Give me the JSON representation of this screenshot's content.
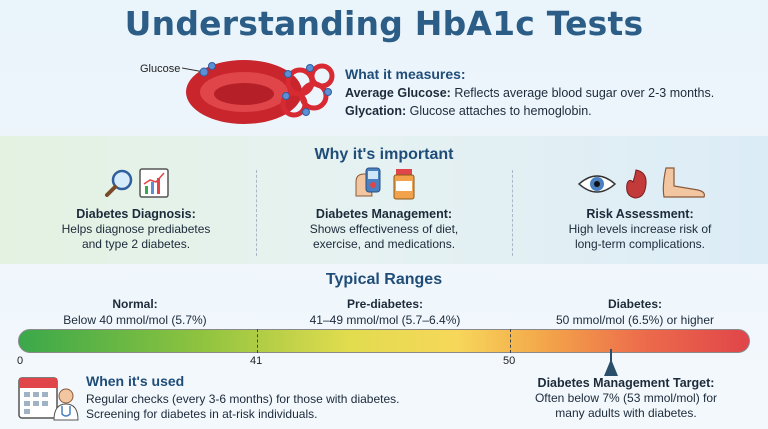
{
  "title": "Understanding HbA1c Tests",
  "measures": {
    "glucose_label": "Glucose",
    "heading": "What it measures:",
    "line1_bold": "Average Glucose:",
    "line1_text": " Reflects average blood sugar over 2-3 months.",
    "line2_bold": "Glycation:",
    "line2_text": " Glucose attaches to hemoglobin."
  },
  "important": {
    "heading": "Why it's important",
    "columns": [
      {
        "title": "Diabetes Diagnosis:",
        "line1": "Helps diagnose prediabetes",
        "line2": "and type 2 diabetes."
      },
      {
        "title": "Diabetes Management:",
        "line1": "Shows effectiveness of diet,",
        "line2": "exercise, and medications."
      },
      {
        "title": "Risk Assessment:",
        "line1": "High levels increase risk of",
        "line2": "long-term complications."
      }
    ]
  },
  "ranges": {
    "heading": "Typical Ranges",
    "normal": {
      "name": "Normal:",
      "value": "Below 40 mmol/mol (5.7%)"
    },
    "prediabetes": {
      "name": "Pre-diabetes:",
      "value": "41–49 mmol/mol (5.7–6.4%)"
    },
    "diabetes": {
      "name": "Diabetes:",
      "value": "50 mmol/mol (6.5%) or higher"
    },
    "ticks": [
      "0",
      "41",
      "50"
    ],
    "target_marker_mmol": 53
  },
  "used": {
    "heading": "When it's used",
    "line1": "Regular checks (every 3-6 months) for those with diabetes.",
    "line2": "Screening for diabetes in at-risk individuals."
  },
  "target": {
    "heading": "Diabetes Management Target:",
    "line1": "Often below 7% (53 mmol/mol) for",
    "line2": "many adults with diabetes."
  },
  "colors": {
    "title": "#2b5d86",
    "heading": "#1f4d78",
    "bar_low": "#3aa84a",
    "bar_mid": "#f7d75a",
    "bar_high": "#e0454a"
  }
}
